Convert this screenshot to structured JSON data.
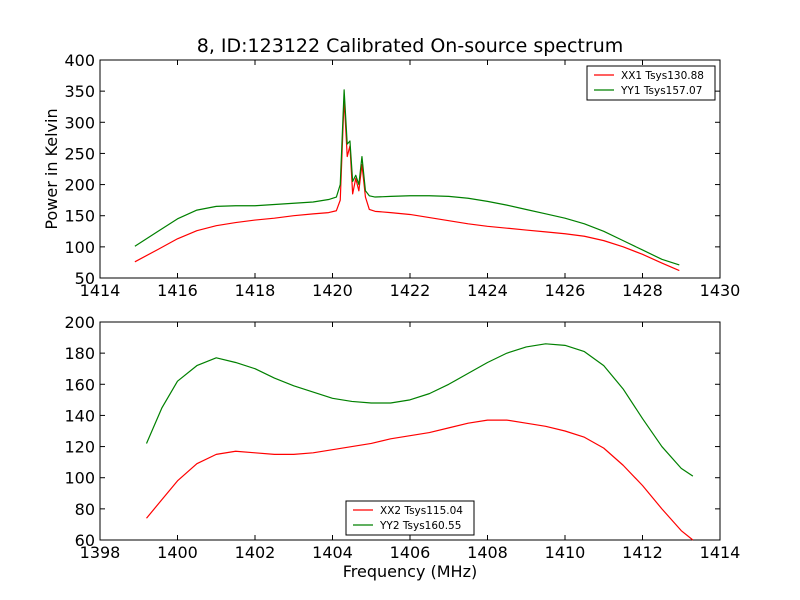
{
  "chart_data": [
    {
      "type": "line",
      "title": "8, ID:123122 Calibrated On-source spectrum",
      "xlabel": "",
      "ylabel": "Power in Kelvin",
      "xlim": [
        1414,
        1430
      ],
      "ylim": [
        50,
        400
      ],
      "xticks": [
        1414,
        1416,
        1418,
        1420,
        1422,
        1424,
        1426,
        1428,
        1430
      ],
      "yticks": [
        50,
        100,
        150,
        200,
        250,
        300,
        350,
        400
      ],
      "grid": false,
      "legend_position": "top-right",
      "series": [
        {
          "name": "XX1 Tsys130.88",
          "color": "#ff0000",
          "x": [
            1414.9,
            1415.5,
            1416.0,
            1416.5,
            1417.0,
            1417.5,
            1418.0,
            1418.5,
            1419.0,
            1419.5,
            1419.9,
            1420.1,
            1420.2,
            1420.3,
            1420.38,
            1420.45,
            1420.52,
            1420.6,
            1420.68,
            1420.76,
            1420.85,
            1420.95,
            1421.1,
            1421.5,
            1422.0,
            1422.5,
            1423.0,
            1423.5,
            1424.0,
            1424.5,
            1425.0,
            1425.5,
            1426.0,
            1426.5,
            1427.0,
            1427.5,
            1428.0,
            1428.5,
            1428.95
          ],
          "y": [
            76,
            96,
            113,
            126,
            134,
            139,
            143,
            146,
            150,
            153,
            155,
            158,
            175,
            338,
            245,
            262,
            185,
            210,
            190,
            232,
            180,
            160,
            157,
            155,
            152,
            147,
            142,
            137,
            133,
            130,
            127,
            124,
            121,
            117,
            110,
            100,
            88,
            74,
            62
          ]
        },
        {
          "name": "YY1 Tsys157.07",
          "color": "#008000",
          "x": [
            1414.9,
            1415.5,
            1416.0,
            1416.5,
            1417.0,
            1417.5,
            1418.0,
            1418.5,
            1419.0,
            1419.5,
            1419.9,
            1420.1,
            1420.2,
            1420.3,
            1420.38,
            1420.45,
            1420.52,
            1420.6,
            1420.68,
            1420.76,
            1420.85,
            1420.95,
            1421.1,
            1421.5,
            1422.0,
            1422.5,
            1423.0,
            1423.5,
            1424.0,
            1424.5,
            1425.0,
            1425.5,
            1426.0,
            1426.5,
            1427.0,
            1427.5,
            1428.0,
            1428.5,
            1428.95
          ],
          "y": [
            101,
            125,
            145,
            159,
            165,
            166,
            166,
            168,
            170,
            172,
            176,
            180,
            200,
            352,
            265,
            270,
            205,
            215,
            200,
            245,
            190,
            182,
            180,
            181,
            182,
            182,
            181,
            178,
            173,
            167,
            160,
            153,
            146,
            137,
            125,
            110,
            95,
            80,
            71
          ]
        }
      ]
    },
    {
      "type": "line",
      "title": "",
      "xlabel": "Frequency (MHz)",
      "ylabel": "",
      "xlim": [
        1398,
        1414
      ],
      "ylim": [
        60,
        200
      ],
      "xticks": [
        1398,
        1400,
        1402,
        1404,
        1406,
        1408,
        1410,
        1412,
        1414
      ],
      "yticks": [
        60,
        80,
        100,
        120,
        140,
        160,
        180,
        200
      ],
      "grid": false,
      "legend_position": "lower-center",
      "series": [
        {
          "name": "XX2 Tsys115.04",
          "color": "#ff0000",
          "x": [
            1399.2,
            1399.6,
            1400.0,
            1400.5,
            1401.0,
            1401.5,
            1402.0,
            1402.5,
            1403.0,
            1403.5,
            1404.0,
            1404.5,
            1405.0,
            1405.5,
            1406.0,
            1406.5,
            1407.0,
            1407.5,
            1408.0,
            1408.5,
            1409.0,
            1409.5,
            1410.0,
            1410.5,
            1411.0,
            1411.5,
            1412.0,
            1412.5,
            1413.0,
            1413.3
          ],
          "y": [
            74,
            86,
            98,
            109,
            115,
            117,
            116,
            115,
            115,
            116,
            118,
            120,
            122,
            125,
            127,
            129,
            132,
            135,
            137,
            137,
            135,
            133,
            130,
            126,
            119,
            108,
            95,
            80,
            66,
            60
          ]
        },
        {
          "name": "YY2 Tsys160.55",
          "color": "#008000",
          "x": [
            1399.2,
            1399.6,
            1400.0,
            1400.5,
            1401.0,
            1401.5,
            1402.0,
            1402.5,
            1403.0,
            1403.5,
            1404.0,
            1404.5,
            1405.0,
            1405.5,
            1406.0,
            1406.5,
            1407.0,
            1407.5,
            1408.0,
            1408.5,
            1409.0,
            1409.5,
            1410.0,
            1410.5,
            1411.0,
            1411.5,
            1412.0,
            1412.5,
            1413.0,
            1413.3
          ],
          "y": [
            122,
            145,
            162,
            172,
            177,
            174,
            170,
            164,
            159,
            155,
            151,
            149,
            148,
            148,
            150,
            154,
            160,
            167,
            174,
            180,
            184,
            186,
            185,
            181,
            172,
            157,
            138,
            120,
            106,
            101
          ]
        }
      ]
    }
  ]
}
